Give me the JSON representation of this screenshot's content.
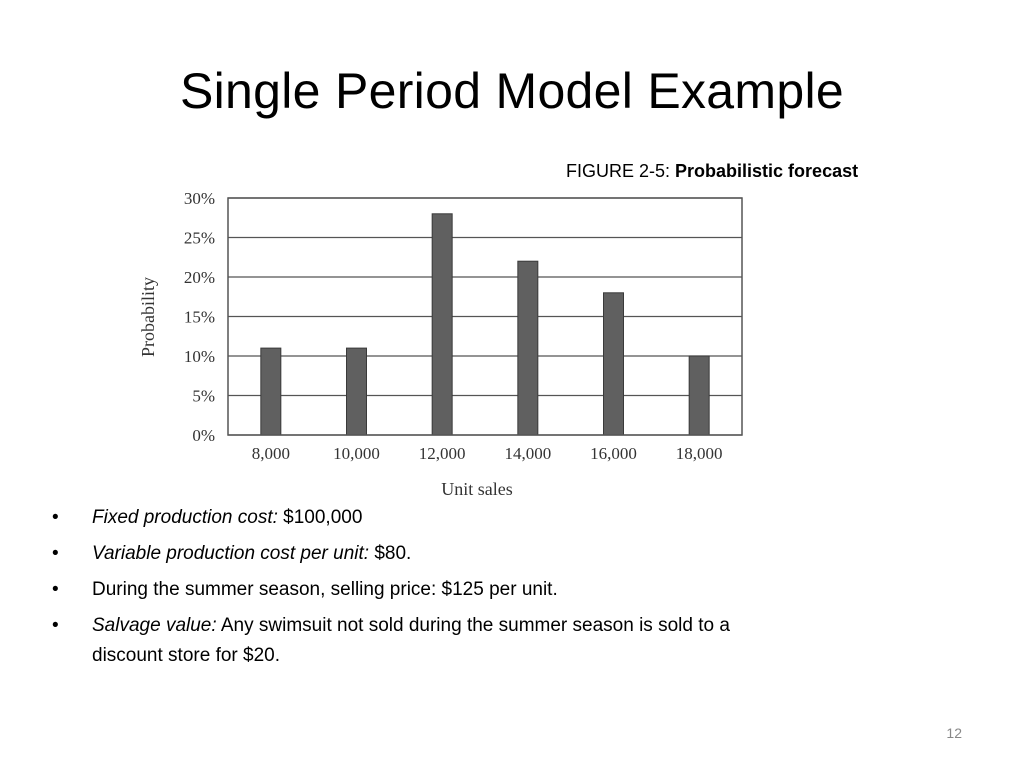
{
  "slide": {
    "title": "Single Period Model Example",
    "page_number": "12"
  },
  "figure": {
    "caption_prefix": "FIGURE 2-5: ",
    "caption_bold": "Probabilistic forecast"
  },
  "chart_data": {
    "type": "bar",
    "categories": [
      "8,000",
      "10,000",
      "12,000",
      "14,000",
      "16,000",
      "18,000"
    ],
    "values": [
      11,
      11,
      28,
      22,
      18,
      10
    ],
    "xlabel": "Unit sales",
    "ylabel": "Probability",
    "ylim": [
      0,
      30
    ],
    "yticks": [
      "0%",
      "5%",
      "10%",
      "15%",
      "20%",
      "25%",
      "30%"
    ],
    "grid": true,
    "bar_color": "#606060"
  },
  "bullets": [
    {
      "italic": "Fixed production cost:",
      "text": " $100,000"
    },
    {
      "italic": "Variable production cost per unit:",
      "text": " $80."
    },
    {
      "italic": "",
      "text": "During the summer season, selling price: $125 per unit."
    },
    {
      "italic": "Salvage value:",
      "text": " Any swimsuit not sold during the summer season is sold to a",
      "text2": "discount store for $20."
    }
  ]
}
